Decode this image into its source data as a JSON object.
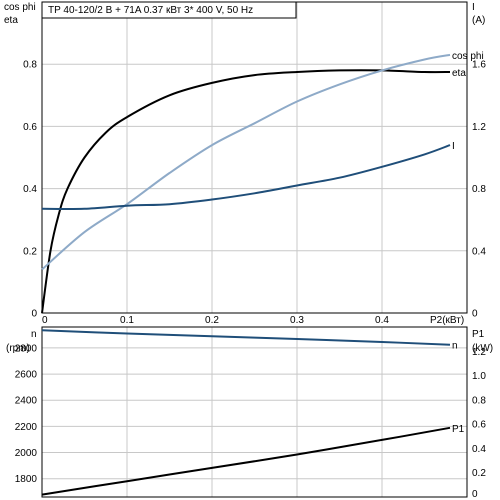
{
  "title": "TP 40-120/2 B + 71A    0.37 кВт    3* 400 V, 50 Hz",
  "colors": {
    "eta": "#000000",
    "cos_phi": "#8eaac8",
    "current": "#1f4e79",
    "speed": "#1f4e79",
    "power": "#000000",
    "grid": "#c8c8c8"
  },
  "chart_data": [
    {
      "type": "line",
      "panel": "top",
      "xlabel": "P2(кВт)",
      "xlim": [
        0,
        0.5
      ],
      "x_ticks": [
        "0",
        "0.1",
        "0.2",
        "0.3",
        "0.4"
      ],
      "x_tick_values": [
        0,
        0.1,
        0.2,
        0.3,
        0.4
      ],
      "left_axis_labels": [
        "cos phi",
        "eta"
      ],
      "ylim_left": [
        0,
        1
      ],
      "y_ticks_left": [
        "0",
        "0.2",
        "0.4",
        "0.6",
        "0.8"
      ],
      "y_tick_values_left": [
        0,
        0.2,
        0.4,
        0.6,
        0.8
      ],
      "right_axis_labels": [
        "I",
        "(A)"
      ],
      "ylim_right": [
        0,
        2
      ],
      "y_ticks_right": [
        "0",
        "0.4",
        "0.8",
        "1.2",
        "1.6"
      ],
      "y_tick_values_right": [
        0,
        0.4,
        0.8,
        1.2,
        1.6
      ],
      "grid": true,
      "series": [
        {
          "name": "eta",
          "axis": "left",
          "x": [
            0,
            0.01,
            0.02,
            0.03,
            0.05,
            0.075,
            0.1,
            0.15,
            0.2,
            0.25,
            0.3,
            0.35,
            0.4,
            0.45,
            0.48
          ],
          "y": [
            0,
            0.2,
            0.32,
            0.4,
            0.5,
            0.58,
            0.63,
            0.7,
            0.74,
            0.765,
            0.775,
            0.78,
            0.78,
            0.775,
            0.775
          ]
        },
        {
          "name": "cos phi",
          "axis": "left",
          "x": [
            0,
            0.05,
            0.1,
            0.15,
            0.2,
            0.25,
            0.3,
            0.35,
            0.4,
            0.45,
            0.48
          ],
          "y": [
            0.14,
            0.26,
            0.35,
            0.45,
            0.54,
            0.61,
            0.68,
            0.735,
            0.78,
            0.815,
            0.83
          ]
        },
        {
          "name": "I",
          "axis": "right",
          "x": [
            0,
            0.05,
            0.1,
            0.15,
            0.2,
            0.25,
            0.3,
            0.35,
            0.4,
            0.45,
            0.48
          ],
          "y": [
            0.67,
            0.67,
            0.69,
            0.7,
            0.73,
            0.77,
            0.82,
            0.87,
            0.94,
            1.02,
            1.08
          ]
        }
      ]
    },
    {
      "type": "line",
      "panel": "bottom",
      "xlim": [
        0,
        0.5
      ],
      "left_axis_labels": [
        "n",
        "(rpm)"
      ],
      "ylim_left": [
        1660,
        2960
      ],
      "y_ticks_left": [
        "1800",
        "2000",
        "2200",
        "2400",
        "2600",
        "2800"
      ],
      "y_tick_values_left": [
        1800,
        2000,
        2200,
        2400,
        2600,
        2800
      ],
      "right_axis_labels": [
        "P1",
        "(kW)"
      ],
      "ylim_right": [
        0,
        1.4
      ],
      "y_ticks_right": [
        "0",
        "0.2",
        "0.4",
        "0.6",
        "0.8",
        "1.0",
        "1.2"
      ],
      "y_tick_values_right": [
        0,
        0.2,
        0.4,
        0.6,
        0.8,
        1.0,
        1.2
      ],
      "grid": true,
      "series": [
        {
          "name": "n",
          "axis": "left",
          "x": [
            0,
            0.1,
            0.2,
            0.3,
            0.4,
            0.48
          ],
          "y": [
            2935,
            2910,
            2890,
            2868,
            2845,
            2825
          ]
        },
        {
          "name": "P1",
          "axis": "right",
          "x": [
            0,
            0.1,
            0.2,
            0.3,
            0.4,
            0.48
          ],
          "y": [
            0.02,
            0.13,
            0.24,
            0.35,
            0.47,
            0.57
          ]
        }
      ]
    }
  ]
}
